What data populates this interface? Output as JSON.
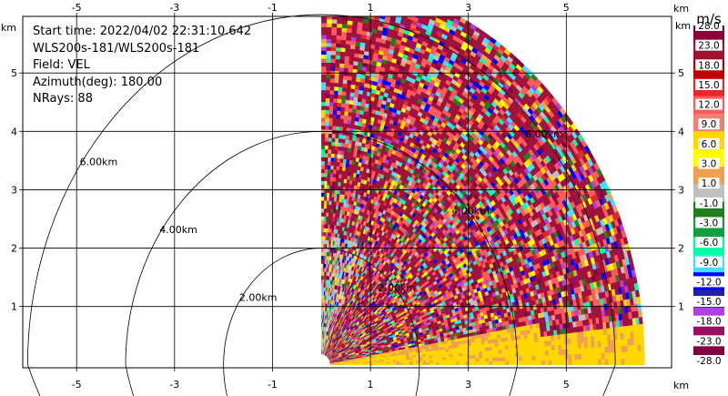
{
  "info": {
    "start_time": "Start time: 2022/04/02 22:31:10.642",
    "instrument": "WLS200s-181/WLS200s-181",
    "field": "Field: VEL",
    "azimuth": "Azimuth(deg): 180.00",
    "nrays": "NRays: 88"
  },
  "axes": {
    "unit_label": "km",
    "x_ticks": [
      "-5",
      "-3",
      "-1",
      "1",
      "3",
      "5"
    ],
    "y_ticks": [
      "1",
      "2",
      "3",
      "4",
      "5"
    ],
    "x_tick_values": [
      -5,
      -3,
      -1,
      1,
      3,
      5
    ],
    "y_tick_values": [
      1,
      2,
      3,
      4,
      5
    ],
    "x_range": [
      -6.1,
      7.15
    ],
    "y_range": [
      -0.05,
      5.97
    ]
  },
  "range_rings": [
    {
      "label": "2.00km",
      "value": 2.0
    },
    {
      "label": "4.00km",
      "value": 4.0
    },
    {
      "label": "6.00km",
      "value": 6.0
    }
  ],
  "ring_labels_right": [
    "2.00km",
    "4.00km",
    "6.00km"
  ],
  "colorbar": {
    "units": "m/s",
    "labels": [
      "28.0",
      "23.0",
      "18.0",
      "15.0",
      "12.0",
      "9.0",
      "6.0",
      "3.0",
      "1.0",
      "-1.0",
      "-3.0",
      "-6.0",
      "-9.0",
      "-12.0",
      "-15.0",
      "-18.0",
      "-23.0",
      "-28.0"
    ],
    "colors": [
      "#8b0038",
      "#a0122e",
      "#c00000",
      "#e02a2a",
      "#ff5a5a",
      "#f08070",
      "#ffd700",
      "#ffff00",
      "#f0a050",
      "#c0c0c0",
      "#208020",
      "#10a040",
      "#00ffa0",
      "#40e0ff",
      "#0000ff",
      "#2020a0",
      "#b040e0",
      "#9a1060",
      "#800040"
    ]
  },
  "palette": [
    "#a0123a",
    "#ff5a5a",
    "#f0a050",
    "#ffd700",
    "#ffff00",
    "#c0c0c0",
    "#00ffa0",
    "#40e0ff",
    "#0000ff",
    "#b040e0",
    "#9a1060",
    "#208020",
    "#800040",
    "#e02a2a"
  ]
}
